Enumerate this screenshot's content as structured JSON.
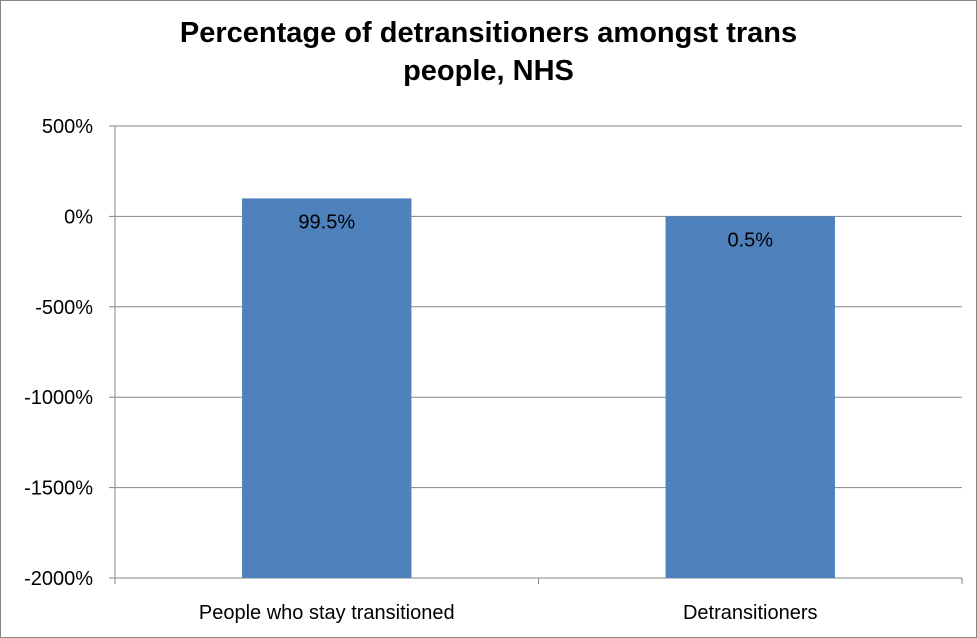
{
  "chart_data": {
    "type": "bar",
    "title_line1": "Percentage of detransitioners amongst trans",
    "title_line2": "people, NHS",
    "categories": [
      "People who stay transitioned",
      "Detransitioners"
    ],
    "values": [
      99.5,
      0.5
    ],
    "data_labels": [
      "99.5%",
      "0.5%"
    ],
    "xlabel": "",
    "ylabel": "",
    "ylim": [
      -2000,
      500
    ],
    "yticks": [
      500,
      0,
      -500,
      -1000,
      -1500,
      -2000
    ],
    "ytick_labels": [
      "500%",
      "0%",
      "-500%",
      "-1000%",
      "-1500%",
      "-2000%"
    ],
    "bar_base": -2000,
    "grid": true,
    "legend": "none",
    "colors": {
      "bar": "#4f81bd",
      "grid": "#868686"
    }
  }
}
